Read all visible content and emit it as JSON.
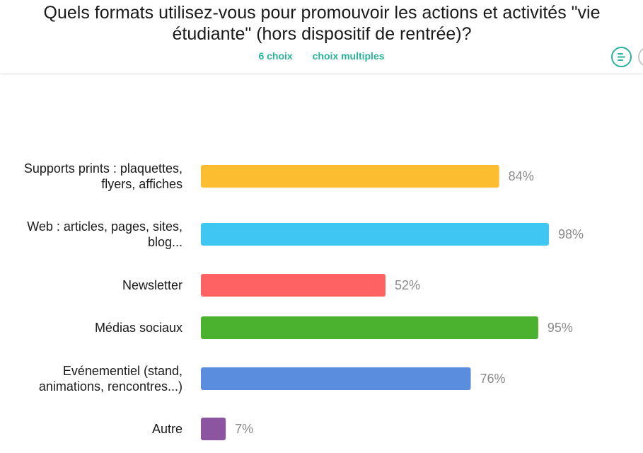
{
  "header": {
    "title": "Quels formats utilisez-vous pour promouvoir les actions et activités \"vie étudiante\" (hors dispositif de rentrée)?",
    "choices_count": "6 choix",
    "choice_type": "choix multiples",
    "accent_color": "#2ab39a"
  },
  "chart_data": {
    "type": "bar",
    "orientation": "horizontal",
    "categories": [
      [
        "Supports prints : plaquettes,",
        "flyers, affiches"
      ],
      [
        "Web : articles, pages, sites,",
        "blog..."
      ],
      [
        "Newsletter"
      ],
      [
        "Médias sociaux"
      ],
      [
        "Evénementiel (stand,",
        "animations, rencontres...)"
      ],
      [
        "Autre"
      ]
    ],
    "values": [
      84,
      98,
      52,
      95,
      76,
      7
    ],
    "value_labels": [
      "84%",
      "98%",
      "52%",
      "95%",
      "76%",
      "7%"
    ],
    "colors": [
      "#fdbd31",
      "#3fc6f2",
      "#fe6262",
      "#4bb22f",
      "#5a8ddd",
      "#8c55a2"
    ],
    "xlim": [
      0,
      100
    ],
    "grid": false,
    "legend": "none"
  }
}
